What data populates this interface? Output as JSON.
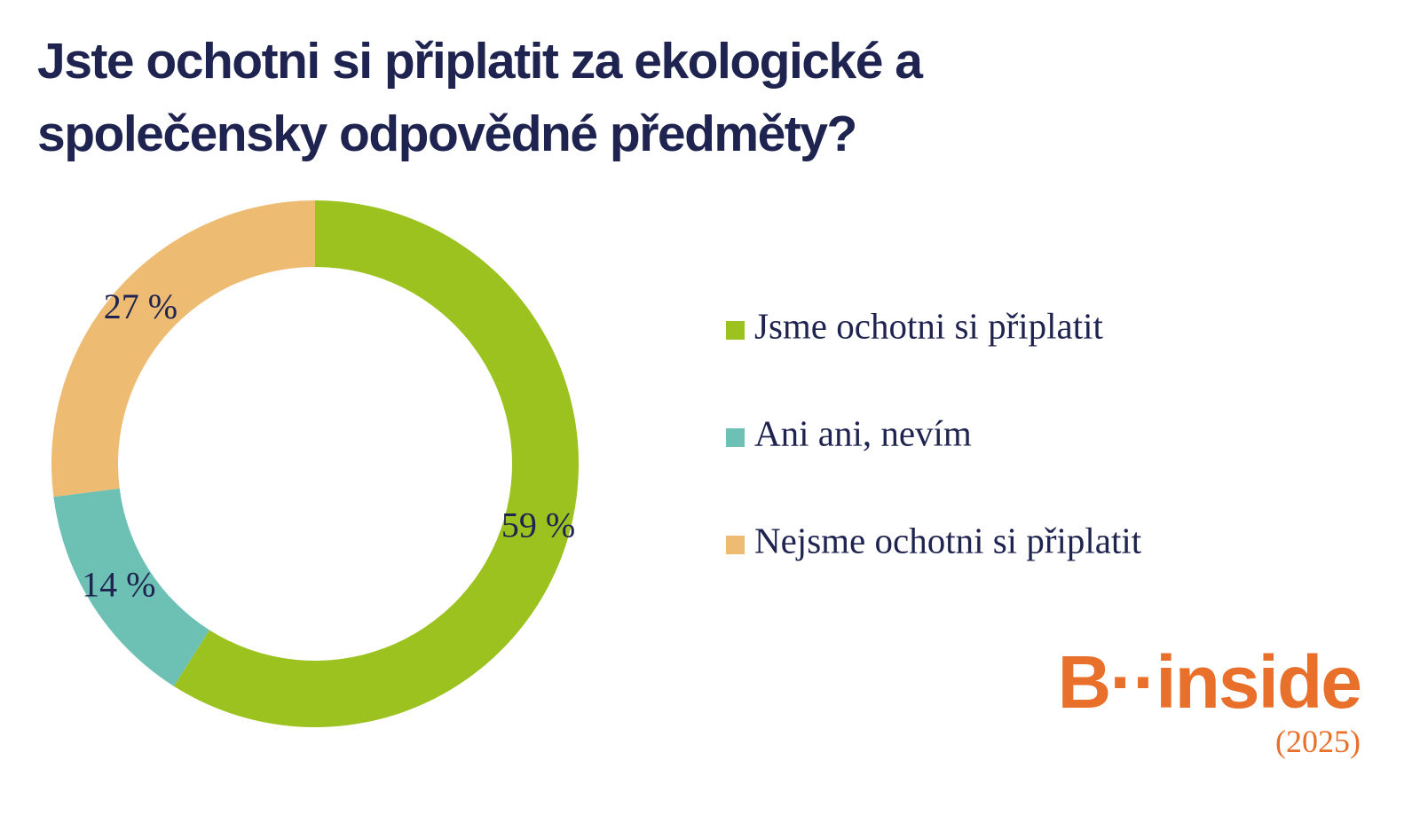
{
  "chart_data": {
    "type": "donut",
    "title": "Jste ochotni si připlatit za ekologické a společensky odpovědné předměty?",
    "categories": [
      "Jsme ochotni si připlatit",
      "Ani ani, nevím",
      "Nejsme ochotni si připlatit"
    ],
    "values": [
      59,
      14,
      27
    ],
    "value_labels": [
      "59 %",
      "14 %",
      "27 %"
    ],
    "colors": [
      "#9cc21f",
      "#6cc1b4",
      "#eebb72"
    ],
    "legend": "right"
  },
  "brand": "B··inside",
  "year": "(2025)"
}
